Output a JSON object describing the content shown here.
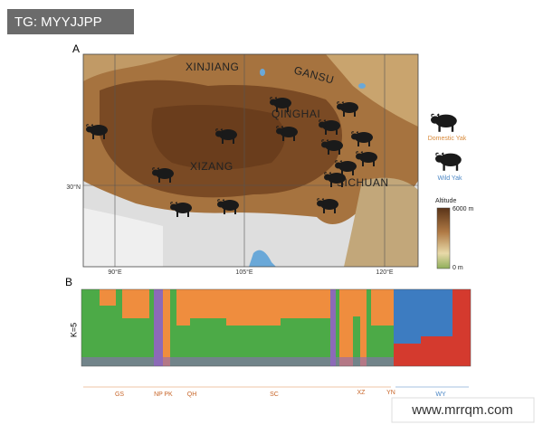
{
  "watermark_top": "TG: MYYJJPP",
  "panel_a": {
    "label": "A",
    "regions": [
      "XINJIANG",
      "GANSU",
      "QINGHAI",
      "XIZANG",
      "SICHUAN"
    ],
    "lat_label": "30°N",
    "lon_labels": [
      "90°E",
      "105°E",
      "120°E"
    ]
  },
  "legend": {
    "domestic": "Domestic Yak",
    "wild": "Wild Yak",
    "altitude_title": "Altitude",
    "alt_max": "6000 m",
    "alt_min": "0 m"
  },
  "panel_b": {
    "label": "B",
    "k_label": "K=5",
    "groups": [
      "GS",
      "NP",
      "PK",
      "QH",
      "SC",
      "XZ",
      "YN",
      "WY"
    ]
  },
  "watermark_bottom": "www.mrrqm.com"
}
